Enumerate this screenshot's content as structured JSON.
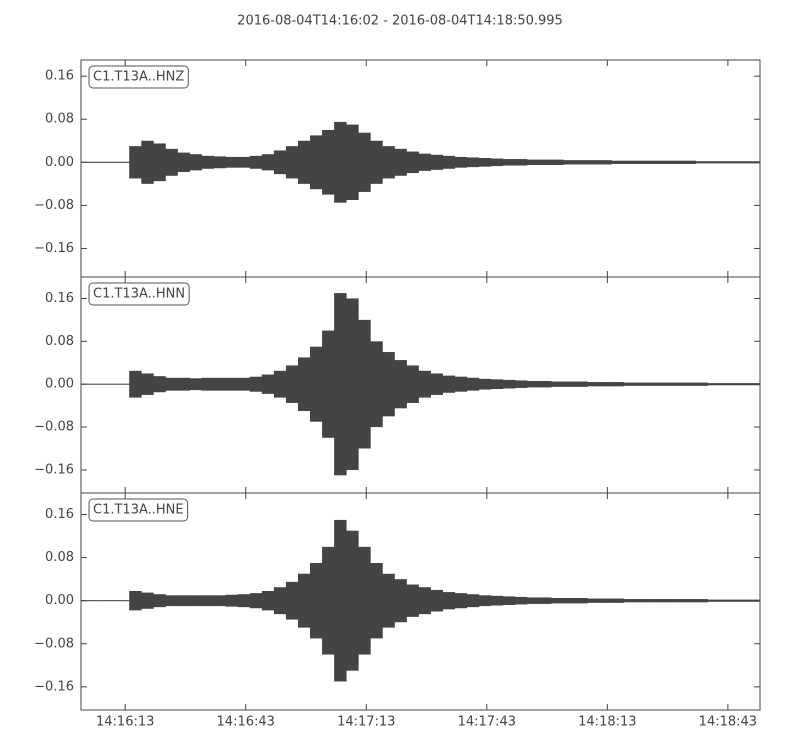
{
  "title": "2016-08-04T14:16:02  -  2016-08-04T14:18:50.995",
  "chart_data": [
    {
      "type": "waveform",
      "title": "C1.T13A..HNZ",
      "color": "#444444",
      "xlim": [
        "14:16:02",
        "14:18:50.995"
      ],
      "ylim": [
        -0.213,
        0.19
      ],
      "yticks": [
        0.16,
        0.08,
        {
          "value": 0,
          "label": "0.00"
        },
        {
          "value": -0.08,
          "label": "−0.08"
        },
        {
          "value": -0.16,
          "label": "−0.16"
        }
      ],
      "x": [
        "14:16:02",
        "14:16:05",
        "14:16:08",
        "14:16:11",
        "14:16:14",
        "14:16:17",
        "14:16:20",
        "14:16:23",
        "14:16:26",
        "14:16:29",
        "14:16:32",
        "14:16:35",
        "14:16:38",
        "14:16:41",
        "14:16:44",
        "14:16:47",
        "14:16:50",
        "14:16:53",
        "14:16:56",
        "14:16:59",
        "14:17:02",
        "14:17:05",
        "14:17:08",
        "14:17:11",
        "14:17:14",
        "14:17:17",
        "14:17:20",
        "14:17:23",
        "14:17:26",
        "14:17:29",
        "14:17:32",
        "14:17:35",
        "14:17:38",
        "14:17:41",
        "14:17:44",
        "14:17:47",
        "14:17:50",
        "14:17:53",
        "14:17:56",
        "14:17:59",
        "14:18:02",
        "14:18:05",
        "14:18:08",
        "14:18:11",
        "14:18:14",
        "14:18:17",
        "14:18:20",
        "14:18:23",
        "14:18:26",
        "14:18:29",
        "14:18:32",
        "14:18:35",
        "14:18:38",
        "14:18:41",
        "14:18:44",
        "14:18:47",
        "14:18:50"
      ],
      "values": [
        0.001,
        0.001,
        0.001,
        0.001,
        0.03,
        0.04,
        0.035,
        0.025,
        0.018,
        0.015,
        0.012,
        0.011,
        0.01,
        0.01,
        0.012,
        0.015,
        0.022,
        0.03,
        0.04,
        0.05,
        0.06,
        0.075,
        0.07,
        0.055,
        0.04,
        0.03,
        0.025,
        0.02,
        0.016,
        0.014,
        0.012,
        0.01,
        0.009,
        0.008,
        0.007,
        0.006,
        0.006,
        0.005,
        0.005,
        0.005,
        0.004,
        0.004,
        0.004,
        0.004,
        0.003,
        0.003,
        0.003,
        0.003,
        0.003,
        0.003,
        0.003,
        0.002,
        0.002,
        0.002,
        0.002,
        0.002,
        0.002
      ]
    },
    {
      "type": "waveform",
      "title": "C1.T13A..HNN",
      "color": "#444444",
      "xlim": [
        "14:16:02",
        "14:18:50.995"
      ],
      "ylim": [
        -0.203,
        0.2
      ],
      "yticks": [
        0.16,
        0.08,
        {
          "value": 0,
          "label": "0.00"
        },
        {
          "value": -0.08,
          "label": "−0.08"
        },
        {
          "value": -0.16,
          "label": "−0.16"
        }
      ],
      "x": [
        "14:16:02",
        "14:16:05",
        "14:16:08",
        "14:16:11",
        "14:16:14",
        "14:16:17",
        "14:16:20",
        "14:16:23",
        "14:16:26",
        "14:16:29",
        "14:16:32",
        "14:16:35",
        "14:16:38",
        "14:16:41",
        "14:16:44",
        "14:16:47",
        "14:16:50",
        "14:16:53",
        "14:16:56",
        "14:16:59",
        "14:17:02",
        "14:17:05",
        "14:17:08",
        "14:17:11",
        "14:17:14",
        "14:17:17",
        "14:17:20",
        "14:17:23",
        "14:17:26",
        "14:17:29",
        "14:17:32",
        "14:17:35",
        "14:17:38",
        "14:17:41",
        "14:17:44",
        "14:17:47",
        "14:17:50",
        "14:17:53",
        "14:17:56",
        "14:17:59",
        "14:18:02",
        "14:18:05",
        "14:18:08",
        "14:18:11",
        "14:18:14",
        "14:18:17",
        "14:18:20",
        "14:18:23",
        "14:18:26",
        "14:18:29",
        "14:18:32",
        "14:18:35",
        "14:18:38",
        "14:18:41",
        "14:18:44",
        "14:18:47",
        "14:18:50"
      ],
      "values": [
        0.001,
        0.001,
        0.001,
        0.001,
        0.025,
        0.02,
        0.015,
        0.012,
        0.012,
        0.011,
        0.012,
        0.012,
        0.012,
        0.012,
        0.014,
        0.018,
        0.025,
        0.035,
        0.05,
        0.07,
        0.1,
        0.17,
        0.16,
        0.12,
        0.08,
        0.06,
        0.045,
        0.035,
        0.025,
        0.02,
        0.016,
        0.014,
        0.012,
        0.01,
        0.009,
        0.008,
        0.007,
        0.006,
        0.006,
        0.005,
        0.005,
        0.005,
        0.004,
        0.004,
        0.004,
        0.003,
        0.003,
        0.003,
        0.003,
        0.003,
        0.003,
        0.003,
        0.002,
        0.002,
        0.002,
        0.002,
        0.002
      ]
    },
    {
      "type": "waveform",
      "title": "C1.T13A..HNE",
      "color": "#444444",
      "xlim": [
        "14:16:02",
        "14:18:50.995"
      ],
      "ylim": [
        -0.203,
        0.2
      ],
      "yticks": [
        0.16,
        0.08,
        {
          "value": 0,
          "label": "0.00"
        },
        {
          "value": -0.08,
          "label": "−0.08"
        },
        {
          "value": -0.16,
          "label": "−0.16"
        }
      ],
      "xticks": [
        "14:16:13",
        "14:16:43",
        "14:17:13",
        "14:17:43",
        "14:18:13",
        "14:18:43"
      ],
      "x": [
        "14:16:02",
        "14:16:05",
        "14:16:08",
        "14:16:11",
        "14:16:14",
        "14:16:17",
        "14:16:20",
        "14:16:23",
        "14:16:26",
        "14:16:29",
        "14:16:32",
        "14:16:35",
        "14:16:38",
        "14:16:41",
        "14:16:44",
        "14:16:47",
        "14:16:50",
        "14:16:53",
        "14:16:56",
        "14:16:59",
        "14:17:02",
        "14:17:05",
        "14:17:08",
        "14:17:11",
        "14:17:14",
        "14:17:17",
        "14:17:20",
        "14:17:23",
        "14:17:26",
        "14:17:29",
        "14:17:32",
        "14:17:35",
        "14:17:38",
        "14:17:41",
        "14:17:44",
        "14:17:47",
        "14:17:50",
        "14:17:53",
        "14:17:56",
        "14:17:59",
        "14:18:02",
        "14:18:05",
        "14:18:08",
        "14:18:11",
        "14:18:14",
        "14:18:17",
        "14:18:20",
        "14:18:23",
        "14:18:26",
        "14:18:29",
        "14:18:32",
        "14:18:35",
        "14:18:38",
        "14:18:41",
        "14:18:44",
        "14:18:47",
        "14:18:50"
      ],
      "values": [
        0.001,
        0.001,
        0.001,
        0.001,
        0.018,
        0.015,
        0.012,
        0.01,
        0.01,
        0.01,
        0.01,
        0.01,
        0.011,
        0.012,
        0.014,
        0.018,
        0.025,
        0.035,
        0.05,
        0.07,
        0.1,
        0.15,
        0.13,
        0.1,
        0.07,
        0.05,
        0.04,
        0.03,
        0.025,
        0.02,
        0.016,
        0.014,
        0.012,
        0.01,
        0.009,
        0.008,
        0.007,
        0.006,
        0.006,
        0.005,
        0.005,
        0.005,
        0.004,
        0.004,
        0.004,
        0.003,
        0.003,
        0.003,
        0.003,
        0.003,
        0.003,
        0.003,
        0.002,
        0.002,
        0.002,
        0.002,
        0.002
      ]
    }
  ]
}
